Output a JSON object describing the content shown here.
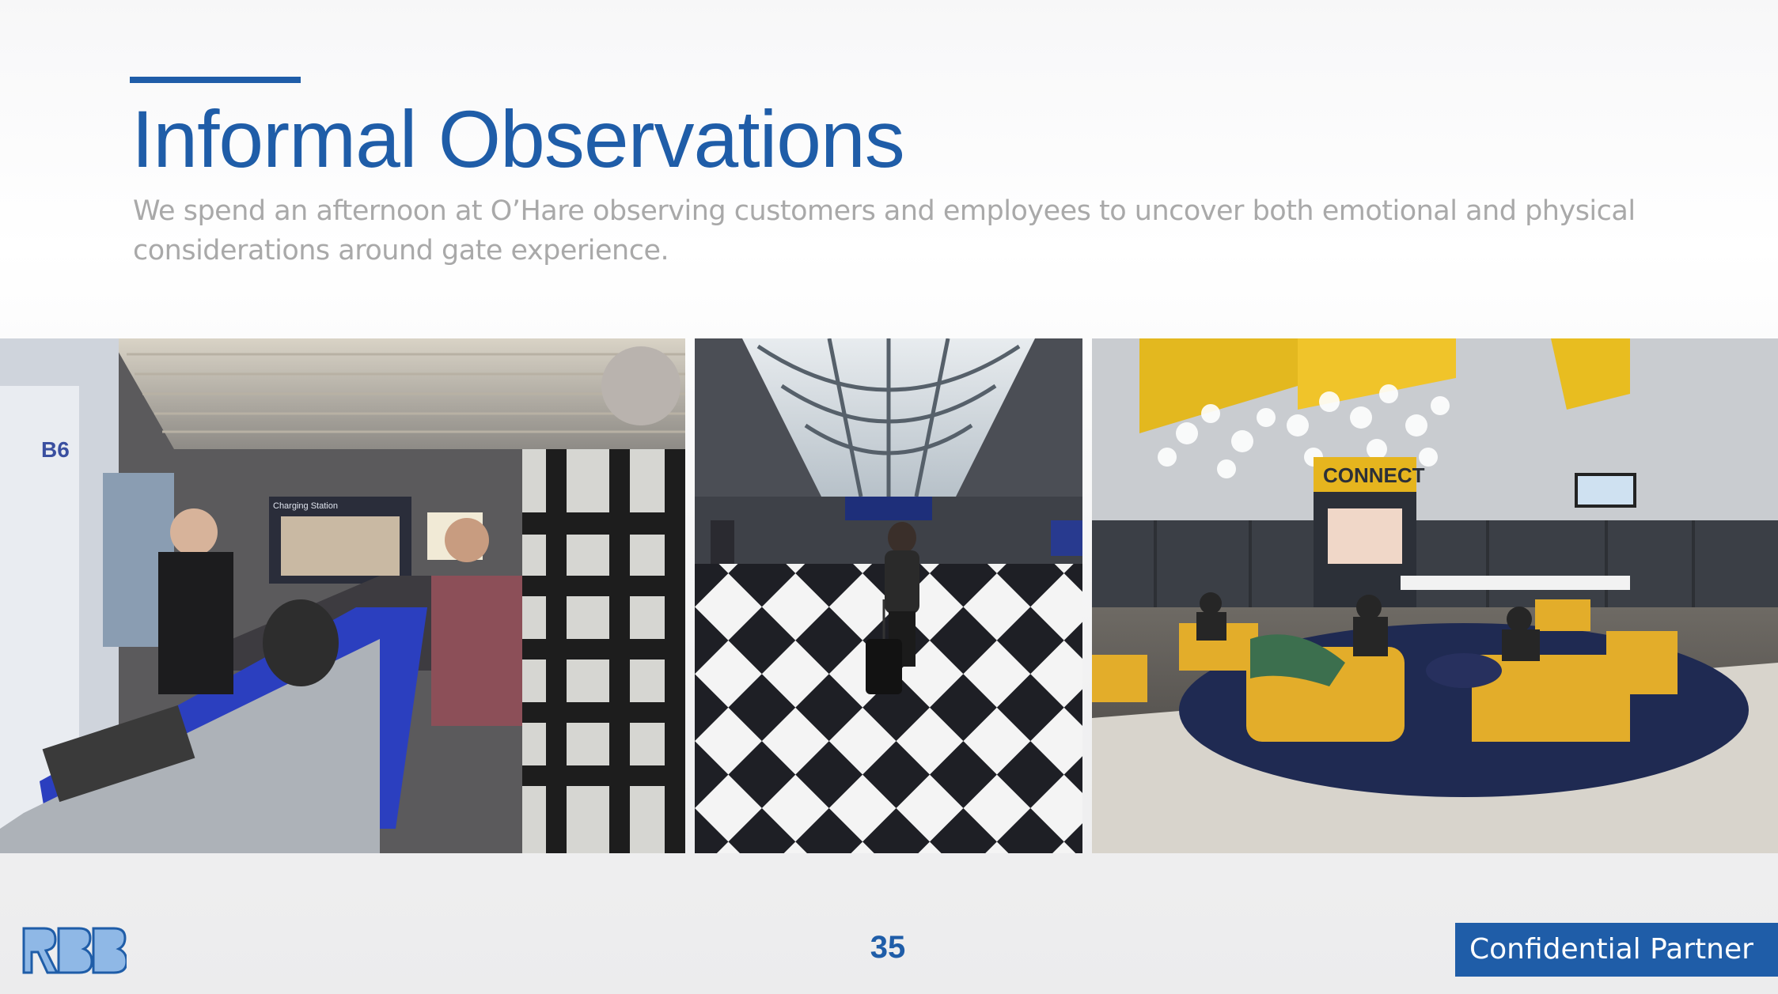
{
  "slide": {
    "title": "Informal Observations",
    "subtitle": "We spend an afternoon at  O’Hare observing customers and employees to uncover both emotional and physical considerations around gate experience.",
    "page_number": "35",
    "footer_label": "Confidential Partner",
    "accent_color": "#1f5da8"
  },
  "photos": [
    {
      "id": "gate-agent-counter",
      "gate_sign": "B6",
      "sign_text": "Charging Station"
    },
    {
      "id": "checkered-concourse"
    },
    {
      "id": "connect-lounge",
      "sign_text": "CONNECT"
    }
  ],
  "logo": {
    "text": "RBB",
    "icon": "rbb-logo"
  }
}
